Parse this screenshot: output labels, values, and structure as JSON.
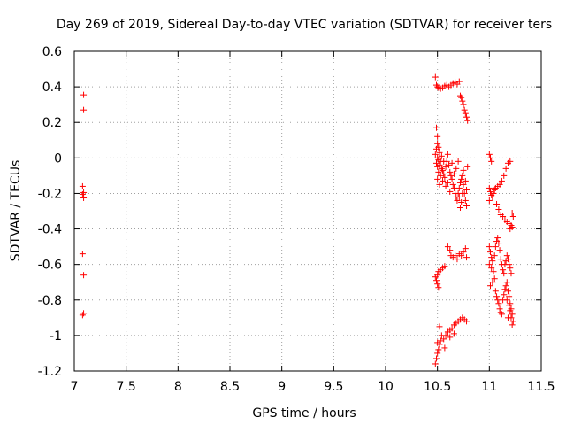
{
  "chart_data": {
    "type": "scatter",
    "title": "Day 269 of 2019, Sidereal Day-to-day VTEC variation (SDTVAR) for receiver ters",
    "xlabel": "GPS time / hours",
    "ylabel": "SDTVAR / TECUs",
    "xlim": [
      7,
      11.5
    ],
    "ylim": [
      -1.2,
      0.6
    ],
    "xticks": [
      7,
      7.5,
      8,
      8.5,
      9,
      9.5,
      10,
      10.5,
      11,
      11.5
    ],
    "yticks": [
      -1.2,
      -1,
      -0.8,
      -0.6,
      -0.4,
      -0.2,
      0,
      0.2,
      0.4,
      0.6
    ],
    "grid": true,
    "marker": "+",
    "color": "#ff0000",
    "series": [
      {
        "name": "SDTVAR",
        "points": [
          [
            7.09,
            0.355
          ],
          [
            7.09,
            0.27
          ],
          [
            7.08,
            -0.16
          ],
          [
            7.09,
            -0.195
          ],
          [
            7.08,
            -0.205
          ],
          [
            7.09,
            -0.225
          ],
          [
            7.08,
            -0.54
          ],
          [
            7.09,
            -0.66
          ],
          [
            7.09,
            -0.875
          ],
          [
            7.08,
            -0.885
          ],
          [
            10.48,
            0.455
          ],
          [
            10.49,
            0.41
          ],
          [
            10.5,
            0.4
          ],
          [
            10.51,
            0.395
          ],
          [
            10.53,
            0.39
          ],
          [
            10.55,
            0.395
          ],
          [
            10.57,
            0.405
          ],
          [
            10.59,
            0.41
          ],
          [
            10.61,
            0.4
          ],
          [
            10.63,
            0.41
          ],
          [
            10.65,
            0.42
          ],
          [
            10.67,
            0.425
          ],
          [
            10.69,
            0.415
          ],
          [
            10.71,
            0.43
          ],
          [
            10.72,
            0.35
          ],
          [
            10.73,
            0.34
          ],
          [
            10.74,
            0.32
          ],
          [
            10.75,
            0.3
          ],
          [
            10.76,
            0.27
          ],
          [
            10.77,
            0.25
          ],
          [
            10.78,
            0.23
          ],
          [
            10.79,
            0.21
          ],
          [
            10.49,
            0.17
          ],
          [
            10.5,
            0.12
          ],
          [
            10.5,
            0.08
          ],
          [
            10.51,
            0.06
          ],
          [
            10.49,
            0.05
          ],
          [
            10.52,
            0.03
          ],
          [
            10.48,
            0.02
          ],
          [
            10.5,
            0.0
          ],
          [
            10.51,
            -0.01
          ],
          [
            10.53,
            -0.02
          ],
          [
            10.49,
            -0.03
          ],
          [
            10.52,
            -0.04
          ],
          [
            10.5,
            -0.05
          ],
          [
            10.54,
            -0.06
          ],
          [
            10.55,
            -0.07
          ],
          [
            10.51,
            -0.08
          ],
          [
            10.56,
            -0.09
          ],
          [
            10.53,
            -0.1
          ],
          [
            10.57,
            -0.11
          ],
          [
            10.5,
            -0.12
          ],
          [
            10.55,
            -0.13
          ],
          [
            10.58,
            -0.05
          ],
          [
            10.59,
            -0.02
          ],
          [
            10.6,
            0.02
          ],
          [
            10.61,
            -0.04
          ],
          [
            10.62,
            -0.08
          ],
          [
            10.63,
            -0.1
          ],
          [
            10.64,
            -0.12
          ],
          [
            10.65,
            -0.15
          ],
          [
            10.66,
            -0.17
          ],
          [
            10.67,
            -0.2
          ],
          [
            10.68,
            -0.22
          ],
          [
            10.69,
            -0.24
          ],
          [
            10.7,
            -0.2
          ],
          [
            10.71,
            -0.17
          ],
          [
            10.72,
            -0.14
          ],
          [
            10.73,
            -0.12
          ],
          [
            10.74,
            -0.1
          ],
          [
            10.75,
            -0.15
          ],
          [
            10.76,
            -0.2
          ],
          [
            10.77,
            -0.24
          ],
          [
            10.78,
            -0.27
          ],
          [
            10.79,
            -0.05
          ],
          [
            10.78,
            -0.18
          ],
          [
            10.77,
            -0.13
          ],
          [
            10.75,
            -0.07
          ],
          [
            10.74,
            -0.2
          ],
          [
            10.73,
            -0.25
          ],
          [
            10.72,
            -0.28
          ],
          [
            10.71,
            -0.22
          ],
          [
            10.7,
            -0.02
          ],
          [
            10.68,
            -0.06
          ],
          [
            10.66,
            -0.09
          ],
          [
            10.64,
            -0.03
          ],
          [
            10.62,
            -0.19
          ],
          [
            10.6,
            -0.14
          ],
          [
            10.58,
            -0.16
          ],
          [
            10.56,
            -0.02
          ],
          [
            10.54,
            0.01
          ],
          [
            10.52,
            -0.15
          ],
          [
            10.48,
            -0.67
          ],
          [
            10.49,
            -0.69
          ],
          [
            10.5,
            -0.71
          ],
          [
            10.51,
            -0.73
          ],
          [
            10.5,
            -0.66
          ],
          [
            10.51,
            -0.64
          ],
          [
            10.53,
            -0.63
          ],
          [
            10.55,
            -0.62
          ],
          [
            10.57,
            -0.61
          ],
          [
            10.6,
            -0.5
          ],
          [
            10.62,
            -0.52
          ],
          [
            10.63,
            -0.55
          ],
          [
            10.65,
            -0.56
          ],
          [
            10.67,
            -0.55
          ],
          [
            10.69,
            -0.57
          ],
          [
            10.71,
            -0.54
          ],
          [
            10.73,
            -0.55
          ],
          [
            10.75,
            -0.53
          ],
          [
            10.77,
            -0.51
          ],
          [
            10.78,
            -0.56
          ],
          [
            10.48,
            -1.16
          ],
          [
            10.49,
            -1.13
          ],
          [
            10.5,
            -1.1
          ],
          [
            10.51,
            -1.08
          ],
          [
            10.52,
            -1.05
          ],
          [
            10.53,
            -1.03
          ],
          [
            10.52,
            -0.95
          ],
          [
            10.54,
            -1.0
          ],
          [
            10.56,
            -1.02
          ],
          [
            10.58,
            -1.0
          ],
          [
            10.6,
            -0.98
          ],
          [
            10.62,
            -0.97
          ],
          [
            10.64,
            -0.96
          ],
          [
            10.66,
            -0.94
          ],
          [
            10.68,
            -0.93
          ],
          [
            10.7,
            -0.92
          ],
          [
            10.72,
            -0.91
          ],
          [
            10.74,
            -0.9
          ],
          [
            10.76,
            -0.91
          ],
          [
            10.78,
            -0.92
          ],
          [
            10.5,
            -1.04
          ],
          [
            10.57,
            -1.07
          ],
          [
            10.62,
            -1.01
          ],
          [
            10.66,
            -0.99
          ],
          [
            11.0,
            0.02
          ],
          [
            11.01,
            0.0
          ],
          [
            11.02,
            -0.02
          ],
          [
            11.0,
            -0.17
          ],
          [
            11.01,
            -0.19
          ],
          [
            11.02,
            -0.21
          ],
          [
            11.0,
            -0.24
          ],
          [
            11.03,
            -0.22
          ],
          [
            11.04,
            -0.2
          ],
          [
            11.05,
            -0.18
          ],
          [
            11.06,
            -0.17
          ],
          [
            11.08,
            -0.16
          ],
          [
            11.1,
            -0.15
          ],
          [
            11.12,
            -0.13
          ],
          [
            11.14,
            -0.1
          ],
          [
            11.16,
            -0.06
          ],
          [
            11.18,
            -0.03
          ],
          [
            11.2,
            -0.02
          ],
          [
            11.07,
            -0.26
          ],
          [
            11.09,
            -0.29
          ],
          [
            11.11,
            -0.32
          ],
          [
            11.13,
            -0.33
          ],
          [
            11.15,
            -0.35
          ],
          [
            11.17,
            -0.36
          ],
          [
            11.19,
            -0.37
          ],
          [
            11.21,
            -0.38
          ],
          [
            11.22,
            -0.39
          ],
          [
            11.23,
            -0.33
          ],
          [
            11.22,
            -0.31
          ],
          [
            11.2,
            -0.4
          ],
          [
            11.0,
            -0.5
          ],
          [
            11.01,
            -0.53
          ],
          [
            11.02,
            -0.56
          ],
          [
            11.03,
            -0.58
          ],
          [
            11.0,
            -0.6
          ],
          [
            11.02,
            -0.62
          ],
          [
            11.04,
            -0.64
          ],
          [
            11.05,
            -0.55
          ],
          [
            11.06,
            -0.5
          ],
          [
            11.07,
            -0.47
          ],
          [
            11.08,
            -0.45
          ],
          [
            11.09,
            -0.48
          ],
          [
            11.1,
            -0.52
          ],
          [
            11.11,
            -0.57
          ],
          [
            11.12,
            -0.6
          ],
          [
            11.13,
            -0.63
          ],
          [
            11.14,
            -0.65
          ],
          [
            11.15,
            -0.6
          ],
          [
            11.16,
            -0.58
          ],
          [
            11.17,
            -0.55
          ],
          [
            11.18,
            -0.57
          ],
          [
            11.19,
            -0.6
          ],
          [
            11.2,
            -0.62
          ],
          [
            11.21,
            -0.65
          ],
          [
            11.01,
            -0.72
          ],
          [
            11.03,
            -0.7
          ],
          [
            11.05,
            -0.68
          ],
          [
            11.06,
            -0.75
          ],
          [
            11.07,
            -0.78
          ],
          [
            11.08,
            -0.8
          ],
          [
            11.09,
            -0.82
          ],
          [
            11.1,
            -0.85
          ],
          [
            11.11,
            -0.87
          ],
          [
            11.12,
            -0.88
          ],
          [
            11.13,
            -0.8
          ],
          [
            11.14,
            -0.77
          ],
          [
            11.15,
            -0.74
          ],
          [
            11.16,
            -0.72
          ],
          [
            11.17,
            -0.7
          ],
          [
            11.18,
            -0.75
          ],
          [
            11.19,
            -0.78
          ],
          [
            11.2,
            -0.82
          ],
          [
            11.21,
            -0.85
          ],
          [
            11.22,
            -0.88
          ],
          [
            11.23,
            -0.92
          ],
          [
            11.22,
            -0.94
          ],
          [
            11.21,
            -0.9
          ],
          [
            11.2,
            -0.86
          ],
          [
            11.19,
            -0.83
          ],
          [
            11.18,
            -0.9
          ],
          [
            11.17,
            -0.8
          ]
        ]
      }
    ]
  }
}
